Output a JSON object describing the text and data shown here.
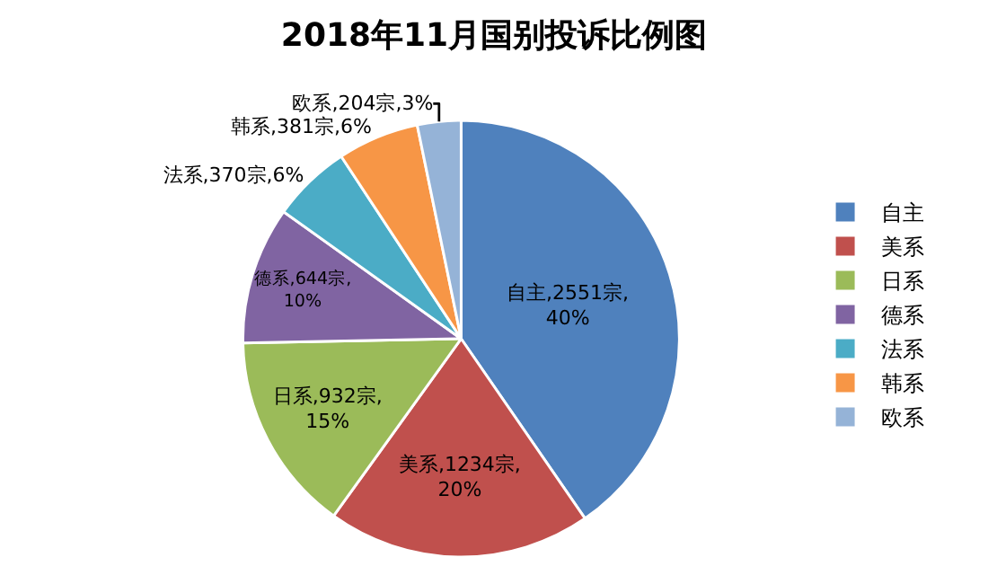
{
  "chart_data": {
    "type": "pie",
    "title": "2018年11月国别投诉比例图",
    "categories": [
      "自主",
      "美系",
      "日系",
      "德系",
      "法系",
      "韩系",
      "欧系"
    ],
    "values": [
      2551,
      1234,
      932,
      644,
      370,
      381,
      204
    ],
    "value_labels": [
      "自主,2551宗,\n40%",
      "美系,1234宗,\n20%",
      "日系,932宗,\n15%",
      "德系,644宗,\n10%",
      "法系,370宗,6%",
      "韩系,381宗,6%",
      "欧系,204宗,3%"
    ],
    "colors": [
      "#4f81bd",
      "#c0504d",
      "#9bbb59",
      "#8064a2",
      "#4bacc6",
      "#f79646",
      "#95b3d7"
    ],
    "legend": "right"
  }
}
